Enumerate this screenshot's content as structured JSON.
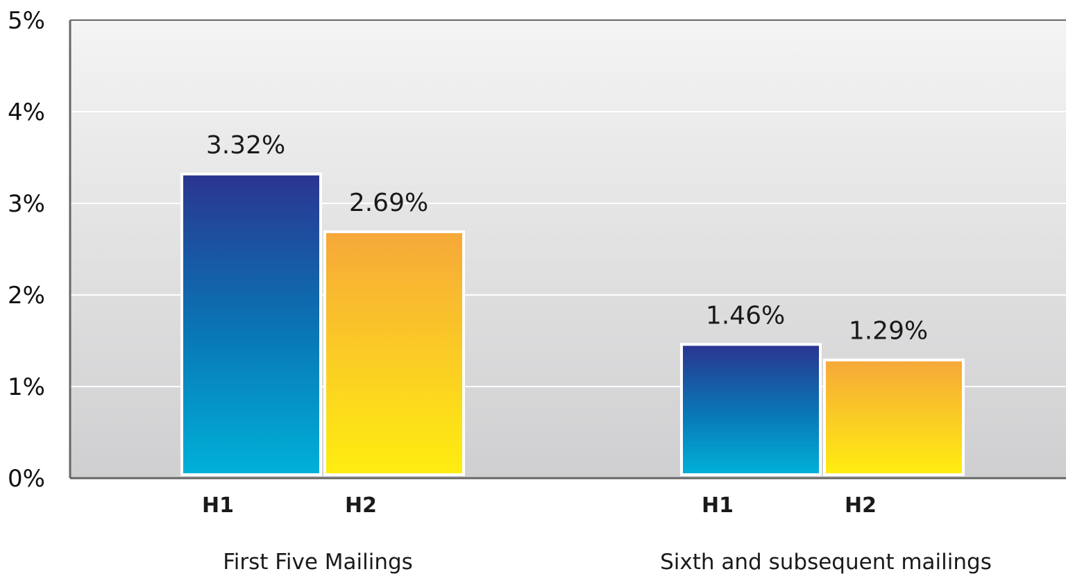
{
  "chart_data": {
    "type": "bar",
    "title": "",
    "xlabel": "",
    "ylabel": "",
    "ylim": [
      0,
      5
    ],
    "y_ticks": [
      {
        "value": 0,
        "label": "0%"
      },
      {
        "value": 1,
        "label": "1%"
      },
      {
        "value": 2,
        "label": "2%"
      },
      {
        "value": 3,
        "label": "3%"
      },
      {
        "value": 4,
        "label": "4%"
      },
      {
        "value": 5,
        "label": "5%"
      }
    ],
    "grid": true,
    "legend": "none",
    "groups": [
      {
        "label": "First Five Mailings",
        "bars": [
          {
            "category": "H1",
            "value": 3.32,
            "value_label": "3.32%"
          },
          {
            "category": "H2",
            "value": 2.69,
            "value_label": "2.69%"
          }
        ]
      },
      {
        "label": "Sixth and subsequent mailings",
        "bars": [
          {
            "category": "H1",
            "value": 1.46,
            "value_label": "1.46%"
          },
          {
            "category": "H2",
            "value": 1.29,
            "value_label": "1.29%"
          }
        ]
      }
    ],
    "colors": {
      "H1_top": "#2b3590",
      "H1_mid": "#0a73b3",
      "H1_bottom": "#00b1d8",
      "H2_top": "#f6a83a",
      "H2_bottom": "#ffee10",
      "plot_bg_top": "#f4f4f4",
      "plot_bg_bottom": "#cfcfd1",
      "axis": "#666666",
      "grid": "#ffffff"
    }
  }
}
